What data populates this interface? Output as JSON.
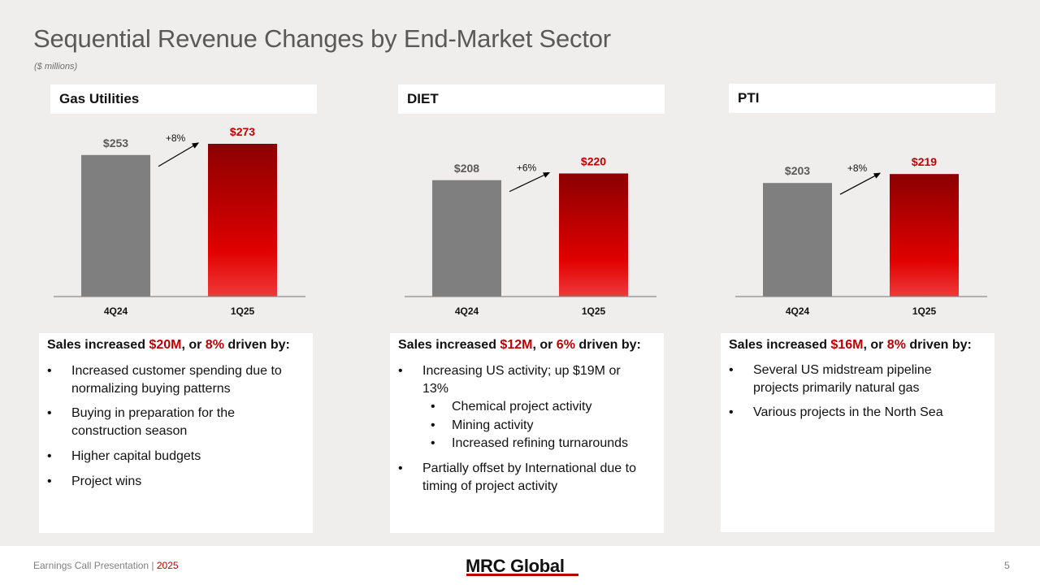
{
  "title": "Sequential Revenue Changes by End-Market Sector",
  "subtitle": "($ millions)",
  "colors": {
    "gray_bar": "#7f7f7f",
    "red_top": "#8b0000",
    "red_mid": "#e00000",
    "accent": "#c00000"
  },
  "panels": [
    {
      "header": "Gas Utilities",
      "summary": {
        "pre": "Sales increased ",
        "amount": "$20M",
        "mid": ", or ",
        "pct": "8%",
        "post": " driven by:"
      },
      "bullets": [
        "Increased customer spending due to normalizing buying patterns",
        "Buying in preparation for the construction season",
        "Higher capital budgets",
        "Project wins"
      ]
    },
    {
      "header": "DIET",
      "summary": {
        "pre": "Sales increased ",
        "amount": "$12M",
        "mid": ", or ",
        "pct": "6%",
        "post": " driven by:"
      },
      "bullets": [
        "Increasing US activity; up $19M or 13%",
        "Chemical project activity",
        "Mining activity",
        "Increased refining turnarounds",
        "Partially offset by International due to timing of project activity"
      ]
    },
    {
      "header": "PTI",
      "summary": {
        "pre": "Sales increased ",
        "amount": "$16M",
        "mid": ", or ",
        "pct": "8%",
        "post": " driven by:"
      },
      "bullets": [
        "Several US midstream pipeline projects primarily natural gas",
        "Various projects in the North Sea"
      ]
    }
  ],
  "chart_data": [
    {
      "type": "bar",
      "title": "Gas Utilities",
      "categories": [
        "4Q24",
        "1Q25"
      ],
      "values": [
        253,
        273
      ],
      "value_labels": [
        "$253",
        "$273"
      ],
      "change_label": "+8%"
    },
    {
      "type": "bar",
      "title": "DIET",
      "categories": [
        "4Q24",
        "1Q25"
      ],
      "values": [
        208,
        220
      ],
      "value_labels": [
        "$208",
        "$220"
      ],
      "change_label": "+6%"
    },
    {
      "type": "bar",
      "title": "PTI",
      "categories": [
        "4Q24",
        "1Q25"
      ],
      "values": [
        203,
        219
      ],
      "value_labels": [
        "$203",
        "$219"
      ],
      "change_label": "+8%"
    }
  ],
  "footer": {
    "left": "Earnings Call Presentation | ",
    "year": "2025",
    "logo": "MRC Global",
    "page": "5"
  }
}
